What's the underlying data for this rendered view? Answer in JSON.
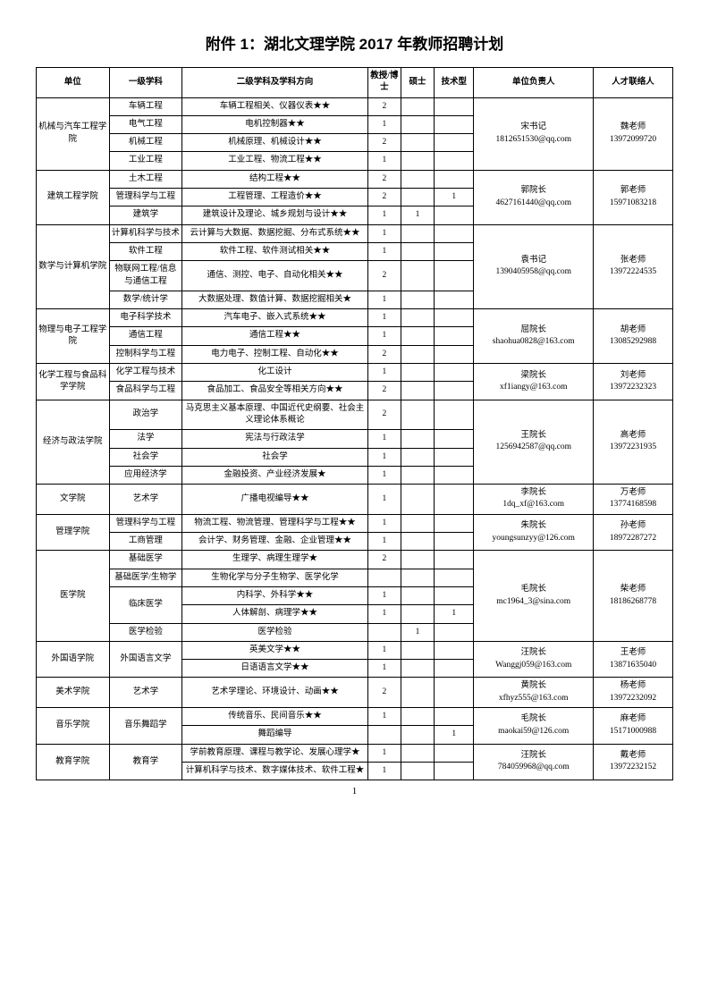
{
  "title": "附件 1：湖北文理学院 2017 年教师招聘计划",
  "pageNumber": "1",
  "headers": {
    "unit": "单位",
    "level1": "一级学科",
    "level2": "二级学科及学科方向",
    "prof": "教授/博士",
    "master": "硕士",
    "tech": "技术型",
    "head": "单位负责人",
    "contact": "人才联络人"
  },
  "units": [
    {
      "name": "机械与汽车工程学院",
      "head": "宋书记\n1812651530@qq.com",
      "contact": "魏老师\n13972099720",
      "rows": [
        {
          "l1": "车辆工程",
          "l2": "车辆工程相关、仪器仪表★★",
          "p": "2",
          "m": "",
          "t": ""
        },
        {
          "l1": "电气工程",
          "l2": "电机控制器★★",
          "p": "1",
          "m": "",
          "t": ""
        },
        {
          "l1": "机械工程",
          "l2": "机械原理、机械设计★★",
          "p": "2",
          "m": "",
          "t": ""
        },
        {
          "l1": "工业工程",
          "l2": "工业工程、物流工程★★",
          "p": "1",
          "m": "",
          "t": ""
        }
      ]
    },
    {
      "name": "建筑工程学院",
      "head": "郭院长\n4627161440@qq.com",
      "contact": "郭老师\n15971083218",
      "rows": [
        {
          "l1": "土木工程",
          "l2": "结构工程★★",
          "p": "2",
          "m": "",
          "t": ""
        },
        {
          "l1": "管理科学与工程",
          "l2": "工程管理、工程造价★★",
          "p": "2",
          "m": "",
          "t": "1"
        },
        {
          "l1": "建筑学",
          "l2": "建筑设计及理论、城乡规划与设计★★",
          "p": "1",
          "m": "1",
          "t": ""
        }
      ]
    },
    {
      "name": "数学与计算机学院",
      "head": "袁书记\n1390405958@qq.com",
      "contact": "张老师\n13972224535",
      "rows": [
        {
          "l1": "计算机科学与技术",
          "l2": "云计算与大数据、数据挖掘、分布式系统★★",
          "p": "1",
          "m": "",
          "t": ""
        },
        {
          "l1": "软件工程",
          "l2": "软件工程、软件测试相关★★",
          "p": "1",
          "m": "",
          "t": ""
        },
        {
          "l1": "物联网工程/信息与通信工程",
          "l2": "通信、测控、电子、自动化相关★★",
          "p": "2",
          "m": "",
          "t": ""
        },
        {
          "l1": "数学/统计学",
          "l2": "大数据处理、数值计算、数据挖掘相关★",
          "p": "1",
          "m": "",
          "t": ""
        }
      ]
    },
    {
      "name": "物理与电子工程学院",
      "head": "屈院长\nshaohua0828@163.com",
      "contact": "胡老师\n13085292988",
      "rows": [
        {
          "l1": "电子科学技术",
          "l2": "汽车电子、嵌入式系统★★",
          "p": "1",
          "m": "",
          "t": ""
        },
        {
          "l1": "通信工程",
          "l2": "通信工程★★",
          "p": "1",
          "m": "",
          "t": ""
        },
        {
          "l1": "控制科学与工程",
          "l2": "电力电子、控制工程、自动化★★",
          "p": "2",
          "m": "",
          "t": ""
        }
      ]
    },
    {
      "name": "化学工程与食品科学学院",
      "head": "梁院长\nxf1iangy@163.com",
      "contact": "刘老师\n13972232323",
      "rows": [
        {
          "l1": "化学工程与技术",
          "l2": "化工设计",
          "p": "1",
          "m": "",
          "t": ""
        },
        {
          "l1": "食品科学与工程",
          "l2": "食品加工、食品安全等相关方向★★",
          "p": "2",
          "m": "",
          "t": ""
        }
      ]
    },
    {
      "name": "经济与政法学院",
      "head": "王院长\n1256942587@qq.com",
      "contact": "高老师\n13972231935",
      "rows": [
        {
          "l1": "政治学",
          "l2": "马克思主义基本原理、中国近代史纲要、社会主义理论体系概论",
          "p": "2",
          "m": "",
          "t": ""
        },
        {
          "l1": "法学",
          "l2": "宪法与行政法学",
          "p": "1",
          "m": "",
          "t": ""
        },
        {
          "l1": "社会学",
          "l2": "社会学",
          "p": "1",
          "m": "",
          "t": ""
        },
        {
          "l1": "应用经济学",
          "l2": "金融投资、产业经济发展★",
          "p": "1",
          "m": "",
          "t": ""
        }
      ]
    },
    {
      "name": "文学院",
      "head": "李院长\n1dq_xf@163.com",
      "contact": "万老师\n13774168598",
      "rows": [
        {
          "l1": "艺术学",
          "l2": "广播电视编导★★",
          "p": "1",
          "m": "",
          "t": ""
        }
      ]
    },
    {
      "name": "管理学院",
      "head": "朱院长\nyoungsunzyy@126.com",
      "contact": "孙老师\n18972287272",
      "rows": [
        {
          "l1": "管理科学与工程",
          "l2": "物流工程、物流管理、管理科学与工程★★",
          "p": "1",
          "m": "",
          "t": ""
        },
        {
          "l1": "工商管理",
          "l2": "会计学、财务管理、金融、企业管理★★",
          "p": "1",
          "m": "",
          "t": ""
        }
      ]
    },
    {
      "name": "医学院",
      "head": "毛院长\nmc1964_3@sina.com",
      "contact": "柴老师\n18186268778",
      "rows": [
        {
          "l1": "基础医学",
          "l2": "生理学、病理生理学★",
          "p": "2",
          "m": "",
          "t": ""
        },
        {
          "l1": "基础医学/生物学",
          "l2": "生物化学与分子生物学、医学化学",
          "p": "",
          "m": "",
          "t": ""
        },
        {
          "l1": "临床医学",
          "l1span": 2,
          "l2": "内科学、外科学★★",
          "p": "1",
          "m": "",
          "t": ""
        },
        {
          "l2": "人体解剖、病理学★★",
          "p": "1",
          "m": "",
          "t": "1"
        },
        {
          "l1": "医学检验",
          "l2": "医学检验",
          "p": "",
          "m": "1",
          "t": ""
        }
      ]
    },
    {
      "name": "外国语学院",
      "head": "汪院长\nWanggj059@163.com",
      "contact": "王老师\n13871635040",
      "rows": [
        {
          "l1": "外国语言文学",
          "l1span": 2,
          "l2": "英美文学★★",
          "p": "1",
          "m": "",
          "t": ""
        },
        {
          "l2": "日语语言文学★★",
          "p": "1",
          "m": "",
          "t": ""
        }
      ]
    },
    {
      "name": "美术学院",
      "head": "黄院长\nxfhyz555@163.com",
      "contact": "杨老师\n13972232092",
      "rows": [
        {
          "l1": "艺术学",
          "l2": "艺术学理论、环境设计、动画★★",
          "p": "2",
          "m": "",
          "t": ""
        }
      ]
    },
    {
      "name": "音乐学院",
      "head": "毛院长\nmaokai59@126.com",
      "contact": "麻老师\n15171000988",
      "rows": [
        {
          "l1": "音乐舞蹈学",
          "l1span": 2,
          "l2": "传统音乐、民间音乐★★",
          "p": "1",
          "m": "",
          "t": ""
        },
        {
          "l2": "舞蹈编导",
          "p": "",
          "m": "",
          "t": "1"
        }
      ]
    },
    {
      "name": "教育学院",
      "head": "汪院长\n784059968@qq.com",
      "contact": "戴老师\n13972232152",
      "rows": [
        {
          "l1": "教育学",
          "l1span": 2,
          "l2": "学前教育原理、课程与教学论、发展心理学★",
          "p": "1",
          "m": "",
          "t": ""
        },
        {
          "l2": "计算机科学与技术、数字媒体技术、软件工程★",
          "p": "1",
          "m": "",
          "t": ""
        }
      ]
    }
  ]
}
